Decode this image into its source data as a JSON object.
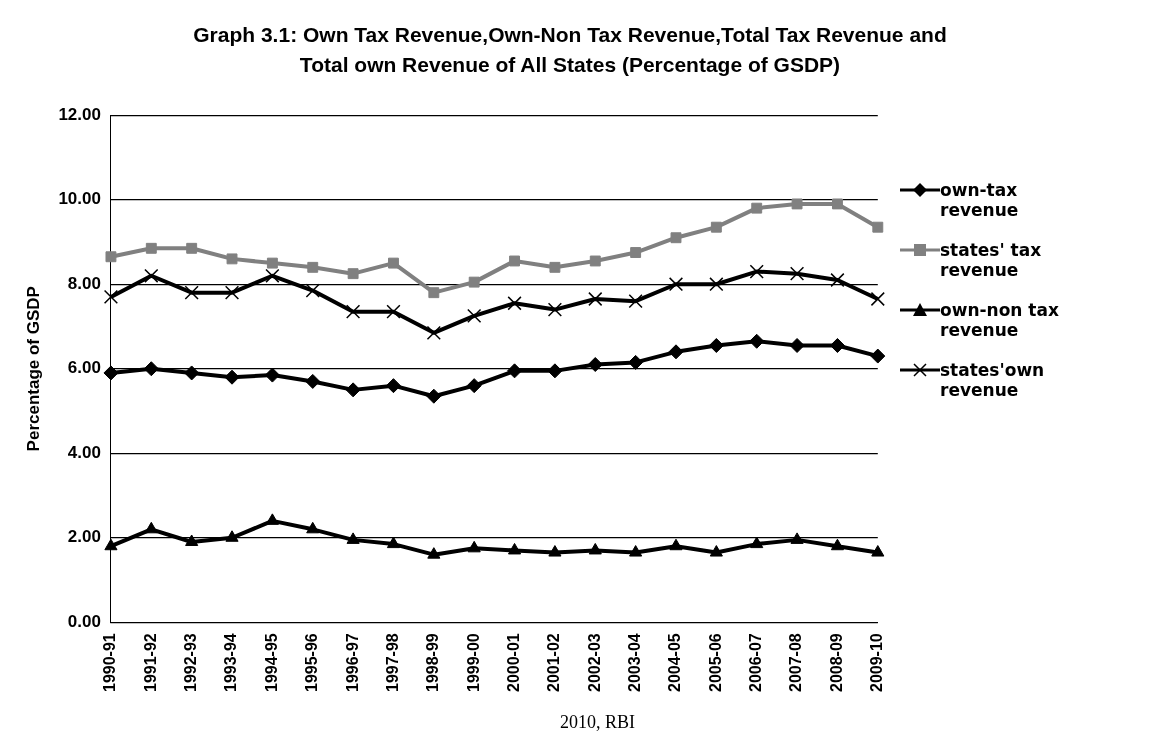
{
  "chart_data": {
    "type": "line",
    "title": "Graph 3.1: Own Tax Revenue,Own-Non Tax Revenue,Total Tax Revenue and Total own Revenue of All States (Percentage of GSDP)",
    "ylabel": "Percentage of GSDP",
    "categories": [
      "1990-91",
      "1991-92",
      "1992-93",
      "1993-94",
      "1994-95",
      "1995-96",
      "1996-97",
      "1997-98",
      "1998-99",
      "1999-00",
      "2000-01",
      "2001-02",
      "2002-03",
      "2003-04",
      "2004-05",
      "2005-06",
      "2006-07",
      "2007-08",
      "2008-09",
      "2009-10"
    ],
    "series": [
      {
        "name": "own-tax revenue",
        "color": "#000000",
        "marker": "diamond",
        "values": [
          5.9,
          6.0,
          5.9,
          5.8,
          5.85,
          5.7,
          5.5,
          5.6,
          5.35,
          5.6,
          5.95,
          5.95,
          6.1,
          6.15,
          6.4,
          6.55,
          6.65,
          6.55,
          6.55,
          6.3
        ]
      },
      {
        "name": "states' tax revenue",
        "color": "#808080",
        "marker": "square",
        "values": [
          8.65,
          8.85,
          8.85,
          8.6,
          8.5,
          8.4,
          8.25,
          8.5,
          7.8,
          8.05,
          8.55,
          8.4,
          8.55,
          8.75,
          9.1,
          9.35,
          9.8,
          9.9,
          9.9,
          9.35
        ]
      },
      {
        "name": "own-non tax revenue",
        "color": "#000000",
        "marker": "triangle",
        "values": [
          1.8,
          2.2,
          1.9,
          2.0,
          2.4,
          2.2,
          1.95,
          1.85,
          1.6,
          1.75,
          1.7,
          1.65,
          1.7,
          1.65,
          1.8,
          1.65,
          1.85,
          1.95,
          1.8,
          1.65
        ]
      },
      {
        "name": "states'own revenue",
        "color": "#000000",
        "marker": "cross",
        "values": [
          7.7,
          8.2,
          7.8,
          7.8,
          8.2,
          7.85,
          7.35,
          7.35,
          6.85,
          7.25,
          7.55,
          7.4,
          7.65,
          7.6,
          8.0,
          8.0,
          8.3,
          8.25,
          8.1,
          7.65
        ]
      }
    ],
    "ylim": [
      0,
      12
    ],
    "yticks": [
      {
        "value": 0,
        "label": "0.00"
      },
      {
        "value": 2,
        "label": "2.00"
      },
      {
        "value": 4,
        "label": "4.00"
      },
      {
        "value": 6,
        "label": "6.00"
      },
      {
        "value": 8,
        "label": "8.00"
      },
      {
        "value": 10,
        "label": "10.00"
      },
      {
        "value": 12,
        "label": "12.00"
      }
    ],
    "grid": "y",
    "legend": "right",
    "annotations": [
      "2010, RBI"
    ]
  }
}
